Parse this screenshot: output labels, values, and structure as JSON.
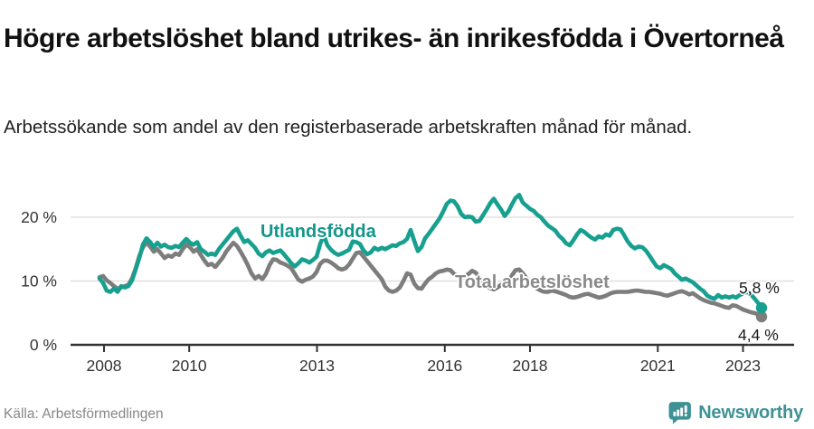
{
  "header": {
    "title": "Högre arbetslöshet bland utrikes- än inrikesfödda i Övertorneå",
    "subtitle": "Arbetssökande som andel av den registerbaserade arbetskraften månad för månad."
  },
  "chart_data": {
    "type": "line",
    "grid": "horizontal",
    "legend": "inline-labels-on-lines",
    "x_unit": "monthly data, Jan 2008 – mid 2023",
    "x_start_year": 2008,
    "points_per_year": 12,
    "ylim": [
      0,
      26
    ],
    "y_ticks": [
      {
        "label": "0 %",
        "value": 0
      },
      {
        "label": "10 %",
        "value": 10
      },
      {
        "label": "20 %",
        "value": 20
      }
    ],
    "x_ticks": [
      {
        "label": "2008",
        "year": 2008
      },
      {
        "label": "2010",
        "year": 2010
      },
      {
        "label": "2013",
        "year": 2013
      },
      {
        "label": "2016",
        "year": 2016
      },
      {
        "label": "2018",
        "year": 2018
      },
      {
        "label": "2021",
        "year": 2021
      },
      {
        "label": "2023",
        "year": 2023
      }
    ],
    "series": [
      {
        "name": "Utlandsfödda",
        "color": "#17a08f",
        "end_label": "5,8 %",
        "end_value": 5.8,
        "values": [
          10.4,
          9.7,
          8.5,
          8.3,
          8.8,
          8.3,
          9.2,
          9.0,
          9.2,
          10.1,
          11.8,
          13.6,
          15.7,
          16.7,
          16.1,
          15.3,
          16.0,
          15.4,
          15.7,
          15.3,
          15.2,
          15.5,
          15.3,
          16.0,
          16.6,
          16.0,
          15.7,
          16.1,
          15.0,
          14.6,
          14.1,
          14.3,
          14.1,
          15.0,
          15.7,
          16.4,
          17.1,
          17.8,
          18.2,
          17.1,
          16.1,
          16.4,
          15.8,
          15.2,
          14.3,
          13.9,
          14.5,
          14.8,
          14.4,
          14.6,
          14.8,
          14.2,
          13.5,
          12.8,
          12.3,
          12.8,
          13.4,
          13.2,
          12.9,
          13.3,
          13.8,
          15.8,
          17.2,
          15.6,
          14.9,
          14.4,
          14.1,
          14.3,
          14.6,
          14.9,
          16.2,
          16.1,
          15.8,
          14.8,
          14.2,
          14.5,
          15.2,
          14.9,
          15.2,
          15.0,
          15.3,
          15.6,
          15.5,
          15.9,
          16.1,
          16.6,
          18.0,
          16.3,
          14.7,
          15.3,
          16.7,
          17.4,
          18.2,
          19.0,
          19.8,
          20.9,
          22.1,
          22.6,
          22.5,
          21.7,
          20.5,
          20.0,
          20.1,
          20.0,
          19.3,
          19.4,
          20.3,
          21.2,
          22.2,
          22.9,
          22.0,
          21.2,
          20.2,
          20.9,
          22.0,
          23.0,
          23.5,
          22.3,
          21.8,
          21.3,
          21.0,
          20.4,
          20.0,
          19.3,
          18.7,
          18.3,
          17.9,
          17.1,
          16.6,
          15.9,
          15.6,
          16.4,
          17.3,
          18.0,
          17.7,
          17.2,
          16.8,
          16.5,
          17.0,
          16.8,
          17.3,
          17.1,
          18.0,
          18.2,
          18.1,
          17.2,
          16.2,
          15.5,
          15.1,
          15.4,
          15.3,
          14.8,
          14.0,
          13.1,
          12.3,
          12.0,
          12.5,
          12.2,
          11.9,
          11.2,
          10.7,
          10.2,
          10.4,
          10.1,
          9.8,
          9.3,
          8.8,
          8.4,
          7.7,
          7.4,
          7.2,
          7.8,
          7.4,
          7.6,
          7.4,
          7.6,
          7.4,
          7.8,
          8.1,
          8.3,
          7.9,
          7.3,
          6.6,
          5.8
        ]
      },
      {
        "name": "Total arbetslöshet",
        "color": "#7d7d7d",
        "end_label": "4,4 %",
        "end_value": 4.4,
        "values": [
          10.6,
          10.8,
          10.1,
          9.7,
          9.2,
          8.8,
          9.0,
          9.2,
          9.4,
          10.4,
          12.0,
          13.9,
          15.3,
          16.0,
          15.4,
          14.6,
          15.0,
          14.3,
          13.6,
          14.0,
          13.8,
          14.3,
          14.1,
          15.0,
          15.7,
          15.3,
          14.6,
          15.0,
          14.1,
          13.2,
          12.5,
          12.7,
          12.2,
          12.9,
          13.6,
          14.6,
          15.3,
          16.0,
          15.5,
          14.6,
          13.6,
          12.5,
          11.2,
          10.4,
          10.8,
          10.3,
          11.1,
          12.5,
          13.4,
          13.3,
          12.9,
          12.7,
          12.4,
          12.0,
          11.1,
          10.2,
          9.9,
          10.2,
          10.4,
          10.7,
          11.4,
          12.7,
          13.2,
          13.2,
          12.9,
          12.5,
          12.0,
          11.8,
          12.0,
          12.6,
          13.5,
          14.4,
          14.5,
          13.8,
          13.1,
          12.4,
          11.7,
          11.0,
          10.3,
          9.1,
          8.5,
          8.3,
          8.5,
          9.0,
          10.0,
          11.2,
          11.0,
          9.6,
          8.9,
          8.8,
          9.6,
          10.3,
          10.7,
          11.2,
          11.5,
          11.6,
          11.8,
          11.7,
          11.1,
          10.8,
          10.4,
          10.7,
          11.1,
          11.6,
          11.3,
          10.6,
          9.9,
          9.2,
          8.9,
          8.7,
          9.0,
          9.4,
          9.3,
          9.6,
          10.9,
          11.7,
          11.8,
          11.2,
          10.5,
          9.8,
          9.3,
          8.8,
          8.5,
          8.3,
          8.3,
          8.5,
          8.4,
          8.2,
          8.0,
          7.8,
          7.5,
          7.4,
          7.5,
          7.7,
          7.9,
          8.0,
          7.8,
          7.6,
          7.4,
          7.5,
          7.7,
          8.0,
          8.2,
          8.3,
          8.3,
          8.3,
          8.3,
          8.4,
          8.5,
          8.5,
          8.4,
          8.3,
          8.3,
          8.2,
          8.1,
          8.0,
          7.8,
          7.7,
          7.9,
          8.1,
          8.3,
          8.4,
          8.2,
          7.9,
          8.1,
          7.7,
          7.3,
          7.0,
          6.8,
          6.6,
          6.5,
          6.3,
          6.1,
          5.9,
          5.8,
          6.2,
          6.1,
          5.8,
          5.5,
          5.3,
          5.1,
          5.0,
          4.8,
          4.4
        ]
      }
    ],
    "axis_colors": {
      "grid": "#dcdcdc",
      "axis": "#333333",
      "tick_label": "#333333"
    }
  },
  "footer": {
    "source": "Källa: Arbetsförmedlingen",
    "brand": "Newsworthy",
    "brand_color": "#3e9295"
  }
}
